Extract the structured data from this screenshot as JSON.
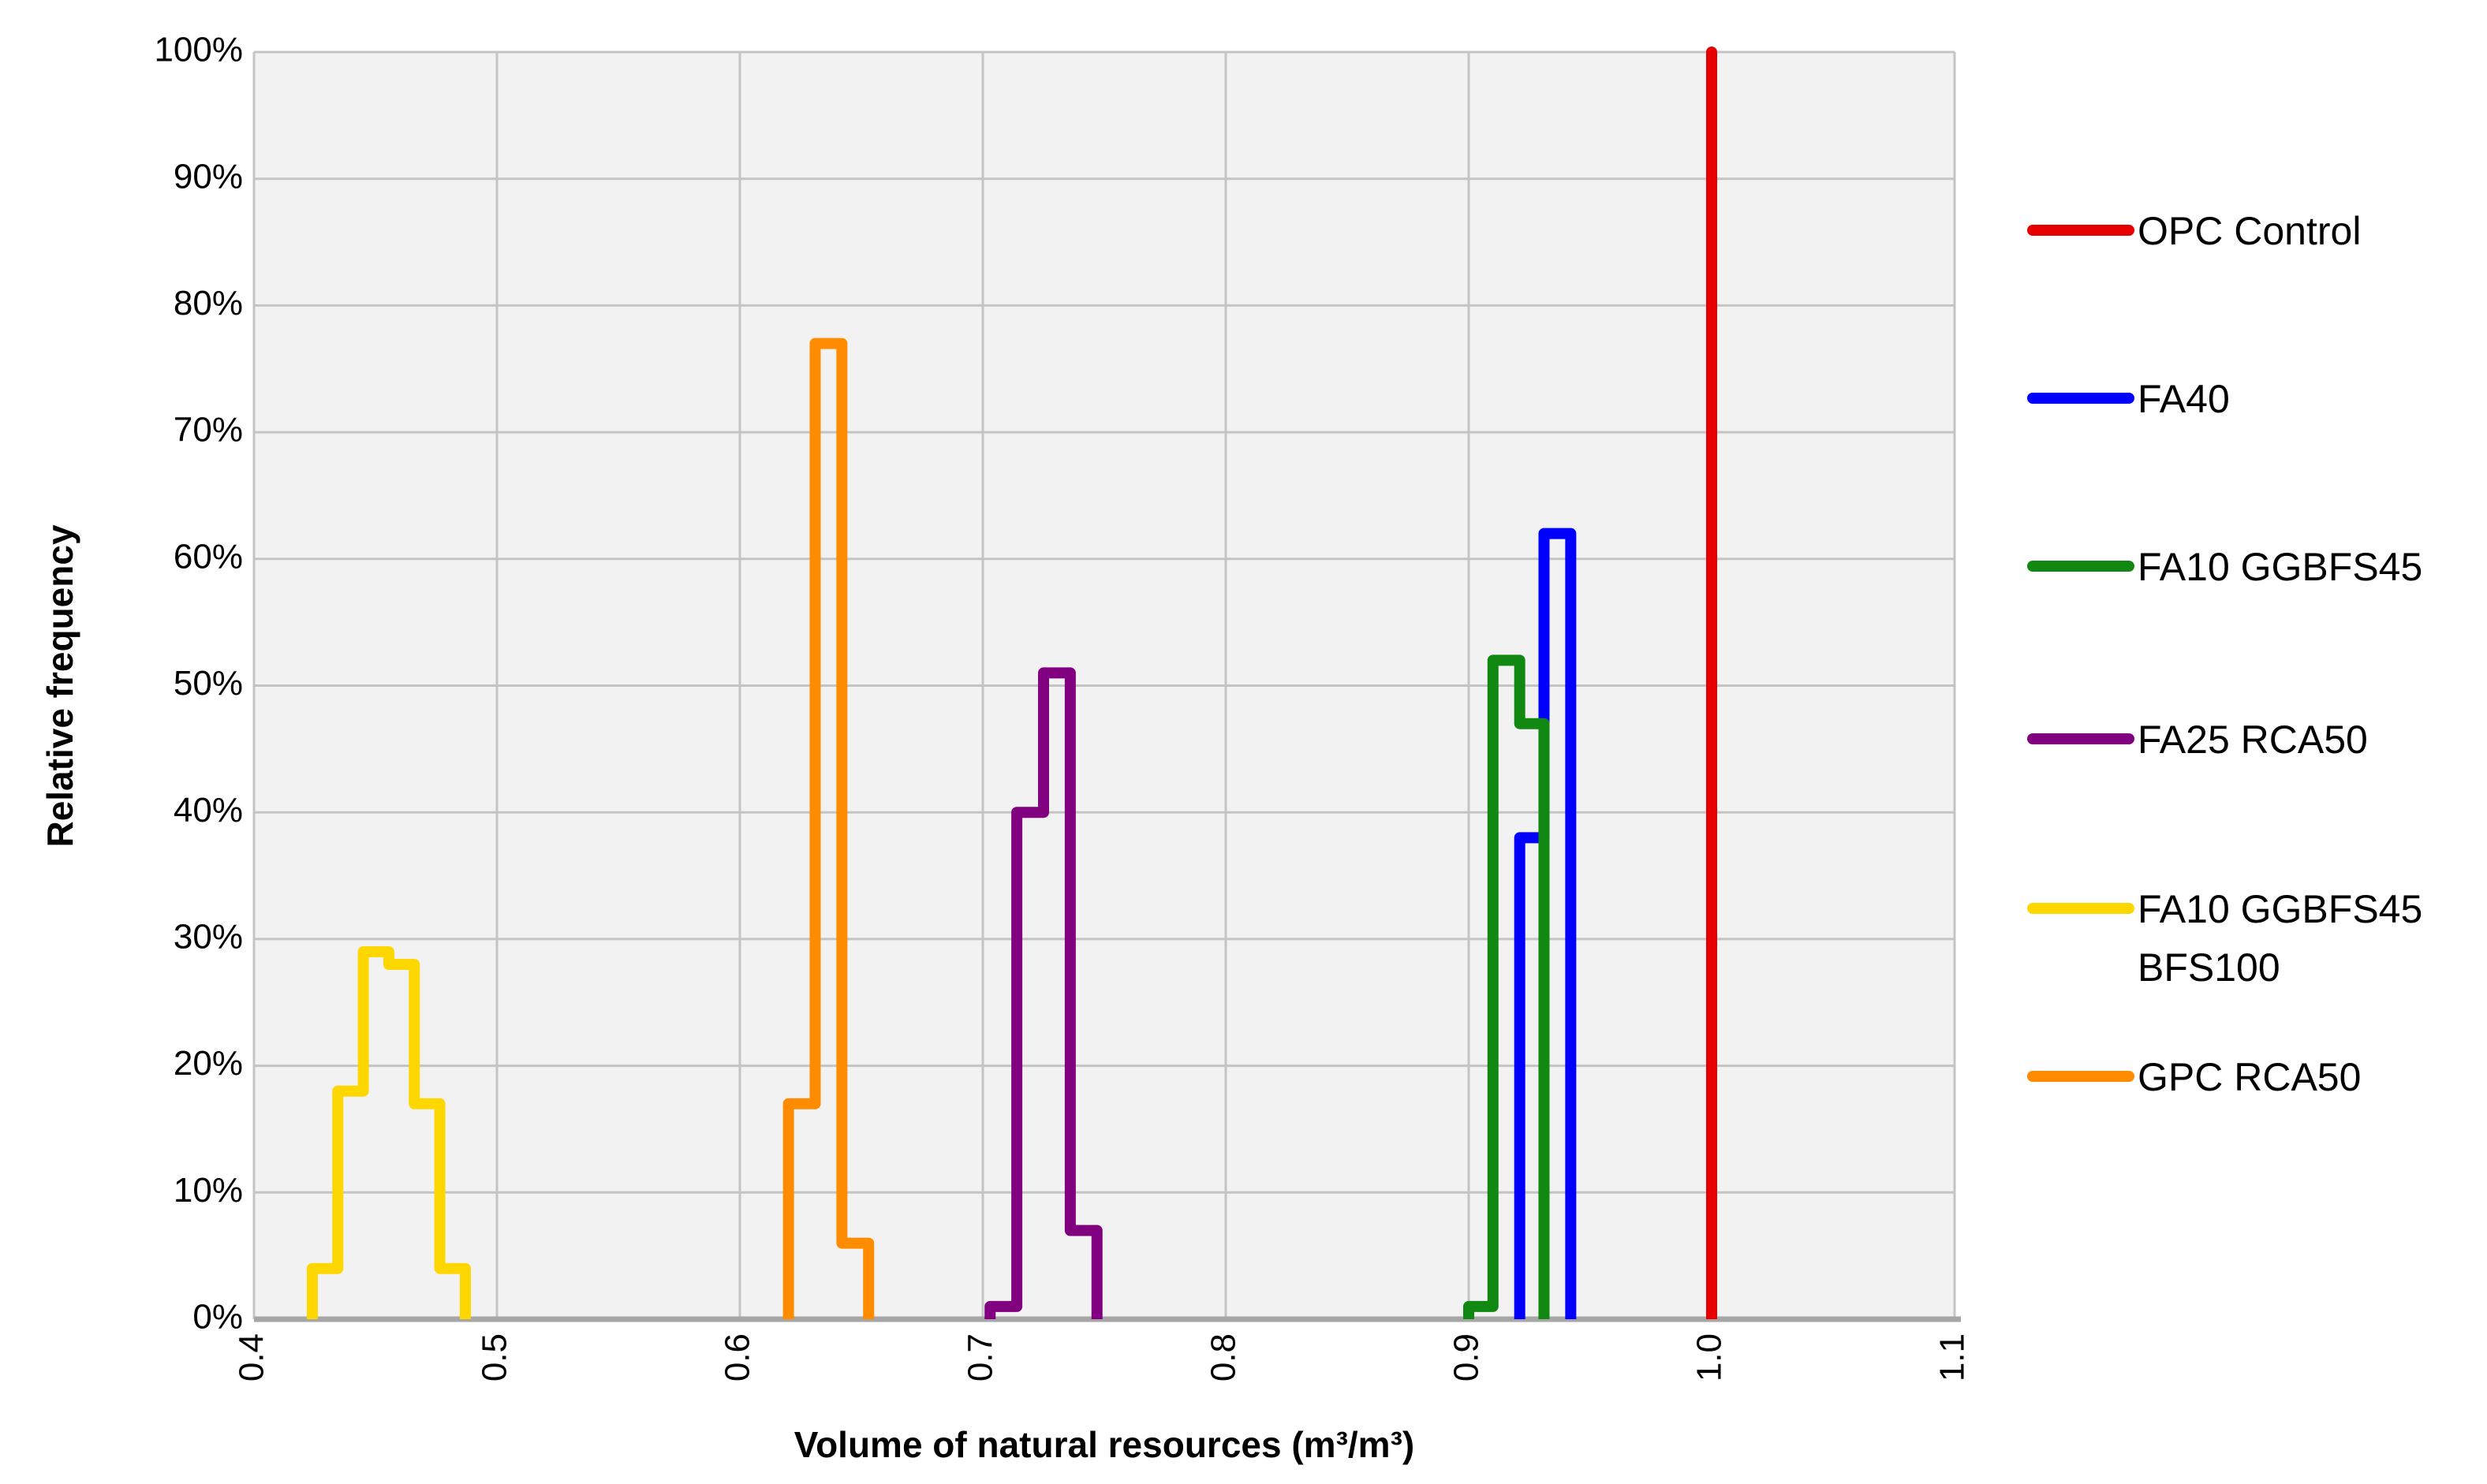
{
  "chart_data": {
    "type": "histogram",
    "xlabel": "Volume of natural resources (m³/m³)",
    "ylabel": "Relative frequency",
    "xlim": [
      0.4,
      1.1
    ],
    "xticks": [
      0.4,
      0.5,
      0.6,
      0.7,
      0.8,
      0.9,
      {
        "value": 1,
        "label": "1.0"
      },
      1.1
    ],
    "ylim": [
      0,
      100
    ],
    "yticks": [
      {
        "value": 0,
        "label": "0%"
      },
      {
        "value": 10,
        "label": "10%"
      },
      {
        "value": 20,
        "label": "20%"
      },
      {
        "value": 30,
        "label": "30%"
      },
      {
        "value": 40,
        "label": "40%"
      },
      {
        "value": 50,
        "label": "50%"
      },
      {
        "value": 60,
        "label": "60%"
      },
      {
        "value": 70,
        "label": "70%"
      },
      {
        "value": 80,
        "label": "80%"
      },
      {
        "value": 90,
        "label": "90%"
      },
      {
        "value": 100,
        "label": "100%"
      }
    ],
    "grid": true,
    "legend": "right",
    "series": [
      {
        "name": "OPC Control",
        "color": "#e60000",
        "bins": [
          1.0,
          1.0
        ],
        "values": [
          100
        ]
      },
      {
        "name": "FA40",
        "color": "#0000ff",
        "bins": [
          0.921,
          0.931,
          0.942
        ],
        "values": [
          38,
          62
        ]
      },
      {
        "name": "FA10 GGBFS45",
        "color": "#118811",
        "bins": [
          0.9,
          0.91,
          0.921,
          0.931
        ],
        "values": [
          1,
          52,
          47
        ]
      },
      {
        "name": "FA25 RCA50",
        "color": "#800080",
        "bins": [
          0.703,
          0.714,
          0.725,
          0.736,
          0.747
        ],
        "values": [
          1,
          40,
          51,
          7
        ]
      },
      {
        "name": "FA10 GGBFS45 BFS100",
        "color": "#ffd700",
        "bins": [
          0.424,
          0.4345,
          0.445,
          0.4555,
          0.466,
          0.4765,
          0.487
        ],
        "values": [
          4,
          18,
          29,
          28,
          17,
          4
        ]
      },
      {
        "name": "GPC RCA50",
        "color": "#ff8c00",
        "bins": [
          0.62,
          0.631,
          0.642,
          0.653
        ],
        "values": [
          17,
          77,
          6
        ]
      }
    ]
  }
}
